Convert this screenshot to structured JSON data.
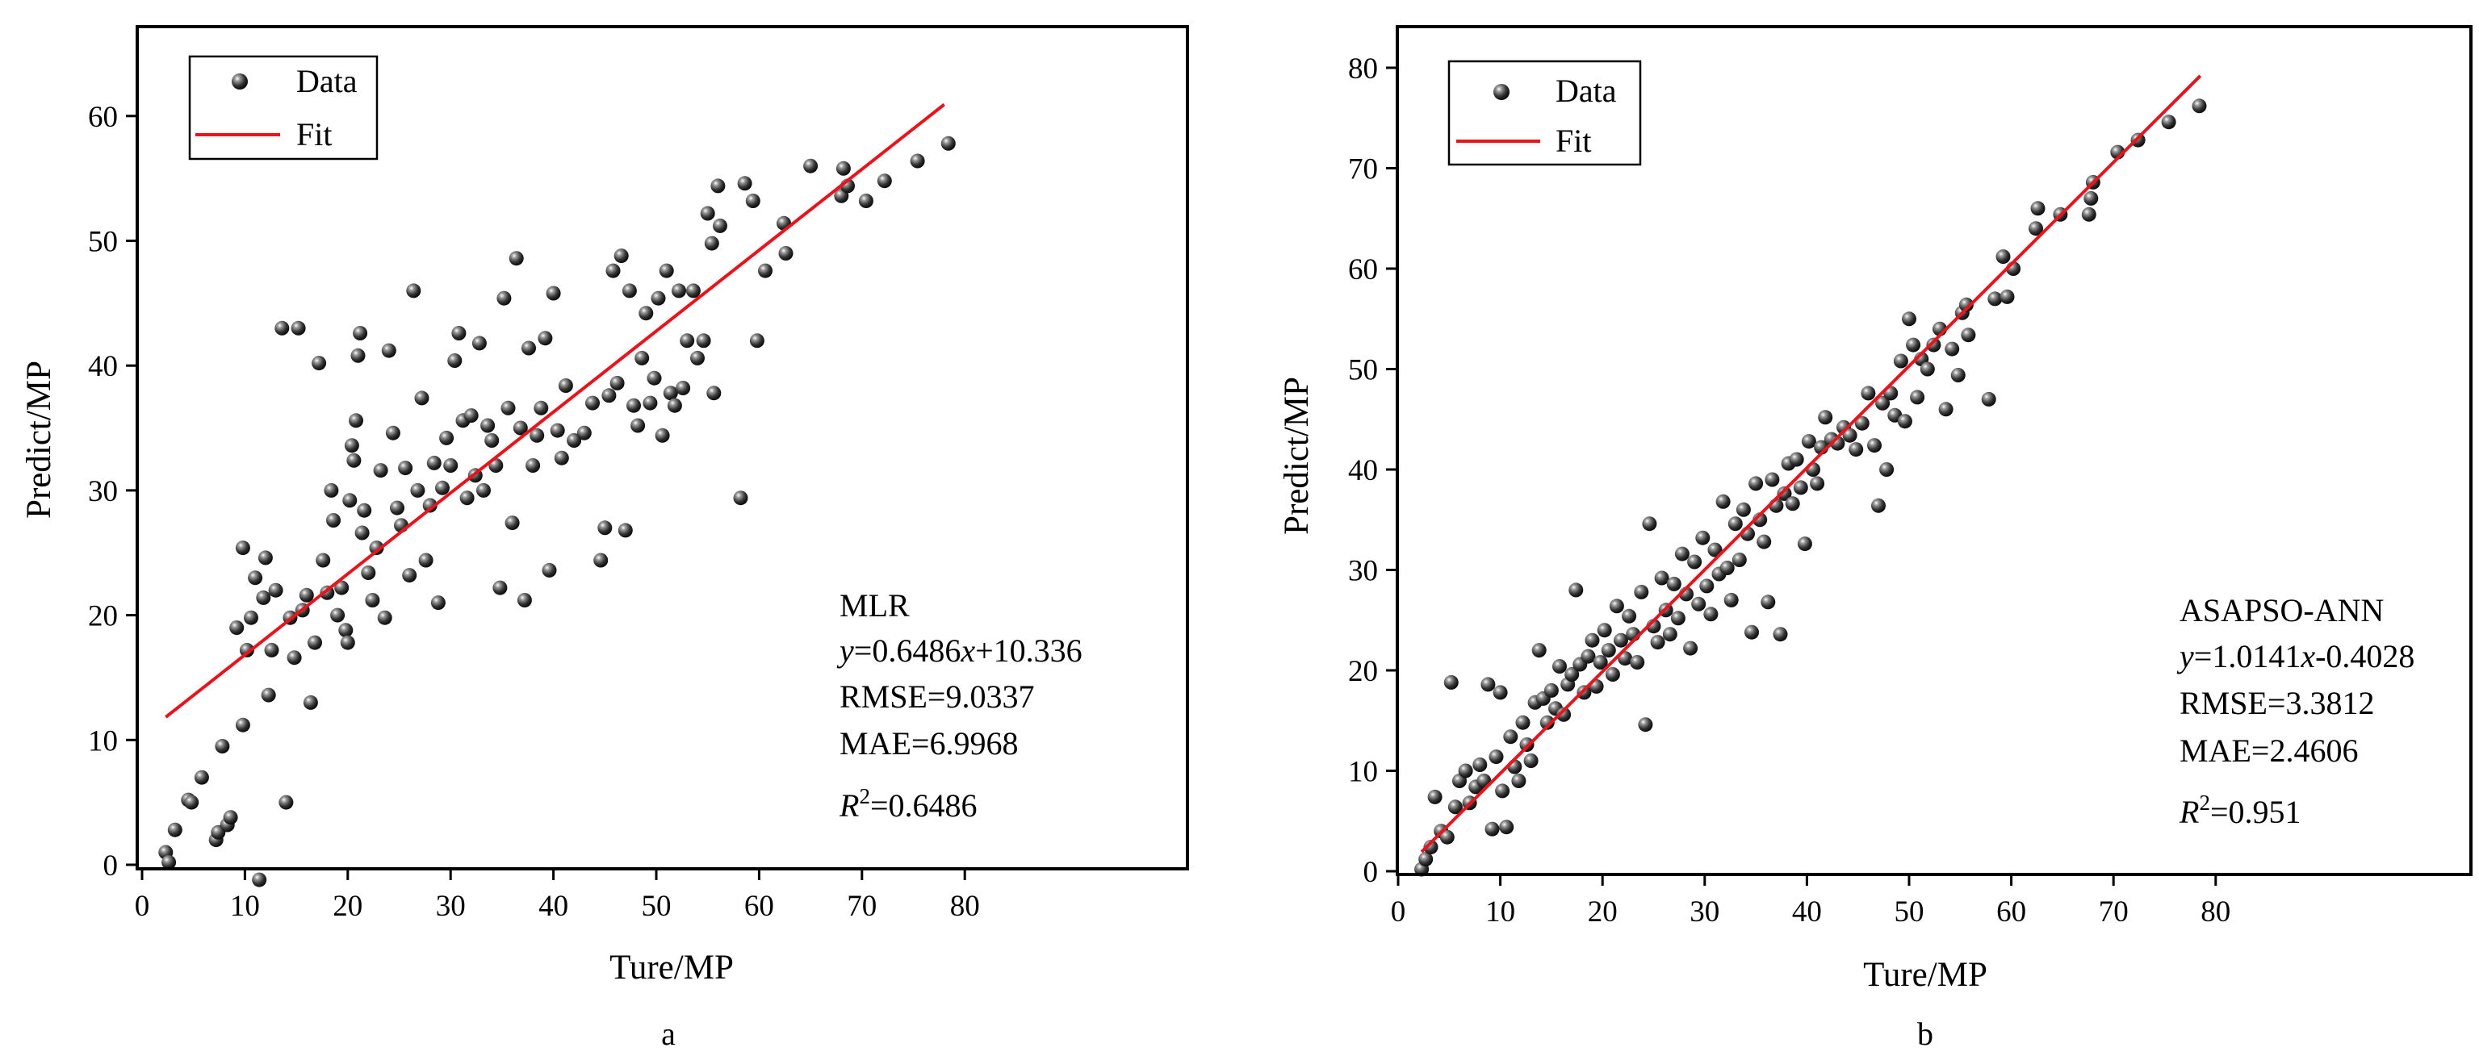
{
  "chart_data": [
    {
      "type": "scatter",
      "panel_label": "a",
      "xlabel": "Ture/MP",
      "ylabel": "Predict/MP",
      "xlim": [
        0,
        85
      ],
      "ylim": [
        -0.5,
        65
      ],
      "xticks": [
        0,
        10,
        20,
        30,
        40,
        50,
        60,
        70,
        80
      ],
      "yticks": [
        0,
        10,
        20,
        30,
        40,
        50,
        60
      ],
      "grid": false,
      "legend_position": "top-left",
      "legend": {
        "data_label": "Data",
        "fit_label": "Fit"
      },
      "colors": {
        "points": "#222222",
        "fit": "#e8141b",
        "frame": "#000000"
      },
      "fit": {
        "slope": 0.6486,
        "intercept": 10.336,
        "x_range": [
          2.3,
          78
        ]
      },
      "stats_lines": [
        {
          "text": "MLR"
        },
        {
          "pre": "y",
          "mid": "=0.6486",
          "var": "x",
          "post": "+10.336"
        },
        {
          "text": "RMSE=9.0337"
        },
        {
          "text": "MAE=6.9968"
        },
        {
          "r2": "R",
          "sup": "2",
          "value": "=0.6486"
        }
      ],
      "points": [
        [
          2.3,
          1.0
        ],
        [
          2.6,
          0.2
        ],
        [
          3.2,
          2.8
        ],
        [
          4.5,
          5.2
        ],
        [
          4.8,
          5.0
        ],
        [
          5.8,
          7.0
        ],
        [
          7.2,
          2.0
        ],
        [
          7.4,
          2.6
        ],
        [
          7.8,
          9.5
        ],
        [
          8.3,
          3.2
        ],
        [
          8.6,
          3.8
        ],
        [
          9.2,
          19.0
        ],
        [
          9.8,
          11.2
        ],
        [
          9.8,
          25.4
        ],
        [
          10.2,
          17.2
        ],
        [
          10.6,
          19.8
        ],
        [
          11.0,
          23.0
        ],
        [
          11.4,
          -1.2
        ],
        [
          11.8,
          21.4
        ],
        [
          12.0,
          24.6
        ],
        [
          12.3,
          13.6
        ],
        [
          12.6,
          17.2
        ],
        [
          13.0,
          22.0
        ],
        [
          13.6,
          43.0
        ],
        [
          14.0,
          5.0
        ],
        [
          14.4,
          19.8
        ],
        [
          14.8,
          16.6
        ],
        [
          15.2,
          43.0
        ],
        [
          15.6,
          20.4
        ],
        [
          16.0,
          21.6
        ],
        [
          16.4,
          13.0
        ],
        [
          16.8,
          17.8
        ],
        [
          17.2,
          40.2
        ],
        [
          17.6,
          24.4
        ],
        [
          18.0,
          21.8
        ],
        [
          18.4,
          30.0
        ],
        [
          18.6,
          27.6
        ],
        [
          19.0,
          20.0
        ],
        [
          19.4,
          22.2
        ],
        [
          19.8,
          18.8
        ],
        [
          20.0,
          17.8
        ],
        [
          20.2,
          29.2
        ],
        [
          20.4,
          33.6
        ],
        [
          20.6,
          32.4
        ],
        [
          20.8,
          35.6
        ],
        [
          21.0,
          40.8
        ],
        [
          21.2,
          42.6
        ],
        [
          21.4,
          26.6
        ],
        [
          21.6,
          28.4
        ],
        [
          22.0,
          23.4
        ],
        [
          22.4,
          21.2
        ],
        [
          22.8,
          25.4
        ],
        [
          23.2,
          31.6
        ],
        [
          23.6,
          19.8
        ],
        [
          24.0,
          41.2
        ],
        [
          24.4,
          34.6
        ],
        [
          24.8,
          28.6
        ],
        [
          25.2,
          27.2
        ],
        [
          25.6,
          31.8
        ],
        [
          26.0,
          23.2
        ],
        [
          26.4,
          46.0
        ],
        [
          26.8,
          30.0
        ],
        [
          27.2,
          37.4
        ],
        [
          27.6,
          24.4
        ],
        [
          28.0,
          28.8
        ],
        [
          28.4,
          32.2
        ],
        [
          28.8,
          21.0
        ],
        [
          29.2,
          30.2
        ],
        [
          29.6,
          34.2
        ],
        [
          30.0,
          32.0
        ],
        [
          30.4,
          40.4
        ],
        [
          30.8,
          42.6
        ],
        [
          31.2,
          35.6
        ],
        [
          31.6,
          29.4
        ],
        [
          32.0,
          36.0
        ],
        [
          32.4,
          31.2
        ],
        [
          32.8,
          41.8
        ],
        [
          33.2,
          30.0
        ],
        [
          33.6,
          35.2
        ],
        [
          34.0,
          34.0
        ],
        [
          34.4,
          32.0
        ],
        [
          34.8,
          22.2
        ],
        [
          35.2,
          45.4
        ],
        [
          35.6,
          36.6
        ],
        [
          36.0,
          27.4
        ],
        [
          36.4,
          48.6
        ],
        [
          36.8,
          35.0
        ],
        [
          37.2,
          21.2
        ],
        [
          37.6,
          41.4
        ],
        [
          38.0,
          32.0
        ],
        [
          38.4,
          34.4
        ],
        [
          38.8,
          36.6
        ],
        [
          39.2,
          42.2
        ],
        [
          39.6,
          23.6
        ],
        [
          40.0,
          45.8
        ],
        [
          40.4,
          34.8
        ],
        [
          40.8,
          32.6
        ],
        [
          41.2,
          38.4
        ],
        [
          42.0,
          34.0
        ],
        [
          43.0,
          34.6
        ],
        [
          43.8,
          37.0
        ],
        [
          44.6,
          24.4
        ],
        [
          45.0,
          27.0
        ],
        [
          45.4,
          37.6
        ],
        [
          45.8,
          47.6
        ],
        [
          46.2,
          38.6
        ],
        [
          46.6,
          48.8
        ],
        [
          47.0,
          26.8
        ],
        [
          47.4,
          46.0
        ],
        [
          47.8,
          36.8
        ],
        [
          48.2,
          35.2
        ],
        [
          48.6,
          40.6
        ],
        [
          49.0,
          44.2
        ],
        [
          49.4,
          37.0
        ],
        [
          49.8,
          39.0
        ],
        [
          50.2,
          45.4
        ],
        [
          50.6,
          34.4
        ],
        [
          51.0,
          47.6
        ],
        [
          51.4,
          37.8
        ],
        [
          51.8,
          36.8
        ],
        [
          52.2,
          46.0
        ],
        [
          52.6,
          38.2
        ],
        [
          53.0,
          42.0
        ],
        [
          53.6,
          46.0
        ],
        [
          54.0,
          40.6
        ],
        [
          54.6,
          42.0
        ],
        [
          55.0,
          52.2
        ],
        [
          55.4,
          49.8
        ],
        [
          55.6,
          37.8
        ],
        [
          56.0,
          54.4
        ],
        [
          56.2,
          51.2
        ],
        [
          58.2,
          29.4
        ],
        [
          58.6,
          54.6
        ],
        [
          59.4,
          53.2
        ],
        [
          59.8,
          42.0
        ],
        [
          60.6,
          47.6
        ],
        [
          62.4,
          51.4
        ],
        [
          62.6,
          49.0
        ],
        [
          65.0,
          56.0
        ],
        [
          68.0,
          53.6
        ],
        [
          68.2,
          55.8
        ],
        [
          68.6,
          54.4
        ],
        [
          70.4,
          53.2
        ],
        [
          72.2,
          54.8
        ],
        [
          75.4,
          56.4
        ],
        [
          78.4,
          57.8
        ]
      ]
    },
    {
      "type": "scatter",
      "panel_label": "b",
      "xlabel": "Ture/MP",
      "ylabel": "Predict/MP",
      "xlim": [
        0,
        85
      ],
      "ylim": [
        -0.5,
        83
      ],
      "xticks": [
        0,
        10,
        20,
        30,
        40,
        50,
        60,
        70,
        80
      ],
      "yticks": [
        0,
        10,
        20,
        30,
        40,
        50,
        60,
        70,
        80
      ],
      "grid": false,
      "legend_position": "top-left",
      "legend": {
        "data_label": "Data",
        "fit_label": "Fit"
      },
      "colors": {
        "points": "#222222",
        "fit": "#e8141b",
        "frame": "#000000"
      },
      "fit": {
        "slope": 1.0141,
        "intercept": -0.4028,
        "x_range": [
          2.3,
          78.5
        ]
      },
      "stats_lines": [
        {
          "text": "ASAPSO-ANN"
        },
        {
          "pre": "y",
          "mid": "=1.0141",
          "var": "x",
          "post": "-0.4028"
        },
        {
          "text": "RMSE=3.3812"
        },
        {
          "text": "MAE=2.4606"
        },
        {
          "r2": "R",
          "sup": "2",
          "value": "=0.951"
        }
      ],
      "points": [
        [
          2.3,
          0.2
        ],
        [
          2.7,
          1.2
        ],
        [
          3.2,
          2.4
        ],
        [
          3.6,
          7.4
        ],
        [
          4.2,
          4.0
        ],
        [
          4.8,
          3.4
        ],
        [
          5.2,
          18.8
        ],
        [
          5.6,
          6.4
        ],
        [
          6.0,
          9.0
        ],
        [
          6.6,
          10.0
        ],
        [
          7.0,
          6.8
        ],
        [
          7.6,
          8.4
        ],
        [
          8.0,
          10.6
        ],
        [
          8.4,
          9.0
        ],
        [
          8.8,
          18.6
        ],
        [
          9.2,
          4.2
        ],
        [
          9.6,
          11.4
        ],
        [
          10.0,
          17.8
        ],
        [
          10.2,
          8.0
        ],
        [
          10.6,
          4.4
        ],
        [
          11.0,
          13.4
        ],
        [
          11.4,
          10.4
        ],
        [
          11.8,
          9.0
        ],
        [
          12.2,
          14.8
        ],
        [
          12.6,
          12.6
        ],
        [
          13.0,
          11.0
        ],
        [
          13.4,
          16.8
        ],
        [
          13.8,
          22.0
        ],
        [
          14.2,
          17.2
        ],
        [
          14.6,
          14.8
        ],
        [
          15.0,
          18.0
        ],
        [
          15.4,
          16.2
        ],
        [
          15.8,
          20.4
        ],
        [
          16.2,
          15.6
        ],
        [
          16.6,
          18.6
        ],
        [
          17.0,
          19.6
        ],
        [
          17.4,
          28.0
        ],
        [
          17.8,
          20.6
        ],
        [
          18.2,
          17.8
        ],
        [
          18.6,
          21.4
        ],
        [
          19.0,
          23.0
        ],
        [
          19.4,
          18.4
        ],
        [
          19.8,
          20.8
        ],
        [
          20.2,
          24.0
        ],
        [
          20.6,
          22.0
        ],
        [
          21.0,
          19.6
        ],
        [
          21.4,
          26.4
        ],
        [
          21.8,
          23.0
        ],
        [
          22.2,
          21.2
        ],
        [
          22.6,
          25.4
        ],
        [
          23.0,
          23.6
        ],
        [
          23.4,
          20.8
        ],
        [
          23.8,
          27.8
        ],
        [
          24.2,
          14.6
        ],
        [
          24.6,
          34.6
        ],
        [
          25.0,
          24.4
        ],
        [
          25.4,
          22.8
        ],
        [
          25.8,
          29.2
        ],
        [
          26.2,
          26.0
        ],
        [
          26.6,
          23.6
        ],
        [
          27.0,
          28.6
        ],
        [
          27.4,
          25.2
        ],
        [
          27.8,
          31.6
        ],
        [
          28.2,
          27.6
        ],
        [
          28.6,
          22.2
        ],
        [
          29.0,
          30.8
        ],
        [
          29.4,
          26.6
        ],
        [
          29.8,
          33.2
        ],
        [
          30.2,
          28.4
        ],
        [
          30.6,
          25.6
        ],
        [
          31.0,
          32.0
        ],
        [
          31.4,
          29.6
        ],
        [
          31.8,
          36.8
        ],
        [
          32.2,
          30.2
        ],
        [
          32.6,
          27.0
        ],
        [
          33.0,
          34.6
        ],
        [
          33.4,
          31.0
        ],
        [
          33.8,
          36.0
        ],
        [
          34.2,
          33.6
        ],
        [
          34.6,
          23.8
        ],
        [
          35.0,
          38.6
        ],
        [
          35.4,
          35.0
        ],
        [
          35.8,
          32.8
        ],
        [
          36.2,
          26.8
        ],
        [
          36.6,
          39.0
        ],
        [
          37.0,
          36.4
        ],
        [
          37.4,
          23.6
        ],
        [
          37.8,
          37.6
        ],
        [
          38.2,
          40.6
        ],
        [
          38.6,
          36.6
        ],
        [
          39.0,
          41.0
        ],
        [
          39.4,
          38.2
        ],
        [
          39.8,
          32.6
        ],
        [
          40.2,
          42.8
        ],
        [
          40.6,
          40.0
        ],
        [
          41.0,
          38.6
        ],
        [
          41.4,
          42.2
        ],
        [
          41.8,
          45.2
        ],
        [
          42.4,
          43.0
        ],
        [
          43.0,
          42.6
        ],
        [
          43.6,
          44.2
        ],
        [
          44.2,
          43.4
        ],
        [
          44.8,
          42.0
        ],
        [
          45.4,
          44.6
        ],
        [
          46.0,
          47.6
        ],
        [
          46.6,
          42.4
        ],
        [
          47.0,
          36.4
        ],
        [
          47.4,
          46.6
        ],
        [
          47.8,
          40.0
        ],
        [
          48.2,
          47.6
        ],
        [
          48.6,
          45.4
        ],
        [
          49.2,
          50.8
        ],
        [
          49.6,
          44.8
        ],
        [
          50.0,
          55.0
        ],
        [
          50.4,
          52.4
        ],
        [
          50.8,
          47.2
        ],
        [
          51.2,
          51.0
        ],
        [
          51.8,
          50.0
        ],
        [
          52.4,
          52.4
        ],
        [
          53.0,
          54.0
        ],
        [
          53.6,
          46.0
        ],
        [
          54.2,
          52.0
        ],
        [
          54.8,
          49.4
        ],
        [
          55.2,
          55.6
        ],
        [
          55.6,
          56.4
        ],
        [
          55.8,
          53.4
        ],
        [
          57.8,
          47.0
        ],
        [
          58.4,
          57.0
        ],
        [
          59.2,
          61.2
        ],
        [
          59.6,
          57.2
        ],
        [
          60.2,
          60.0
        ],
        [
          62.4,
          64.0
        ],
        [
          62.6,
          66.0
        ],
        [
          64.8,
          65.4
        ],
        [
          67.6,
          65.4
        ],
        [
          67.8,
          67.0
        ],
        [
          68.0,
          68.6
        ],
        [
          70.4,
          71.6
        ],
        [
          72.4,
          72.8
        ],
        [
          75.4,
          74.6
        ],
        [
          78.4,
          76.2
        ]
      ]
    }
  ]
}
